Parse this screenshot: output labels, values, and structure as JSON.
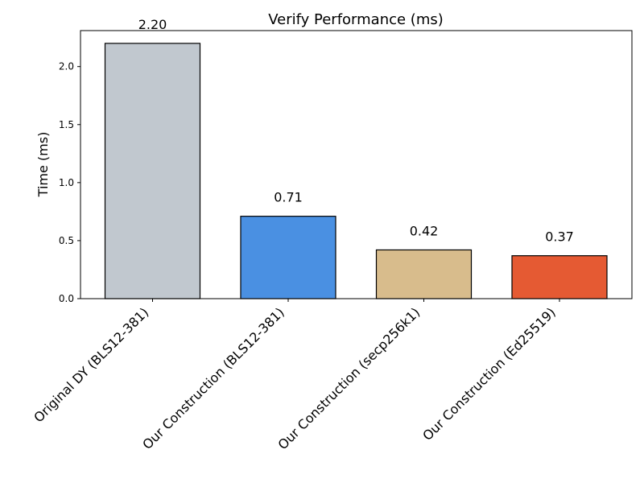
{
  "chart_data": {
    "type": "bar",
    "title": "Verify Performance (ms)",
    "xlabel": "",
    "ylabel": "Time (ms)",
    "ylim": [
      0,
      2.31
    ],
    "yticks": [
      0.0,
      0.5,
      1.0,
      1.5,
      2.0
    ],
    "ytick_labels": [
      "0.0",
      "0.5",
      "1.0",
      "1.5",
      "2.0"
    ],
    "grid": false,
    "categories": [
      "Original DY (BLS12-381)",
      "Our Construction (BLS12-381)",
      "Our Construction (secp256k1)",
      "Our Construction (Ed25519)"
    ],
    "values": [
      2.2,
      0.71,
      0.42,
      0.37
    ],
    "value_labels": [
      "2.20",
      "0.71",
      "0.42",
      "0.37"
    ],
    "colors": [
      "#c1c8cf",
      "#4a90e2",
      "#d8bc8c",
      "#e55a33"
    ]
  }
}
